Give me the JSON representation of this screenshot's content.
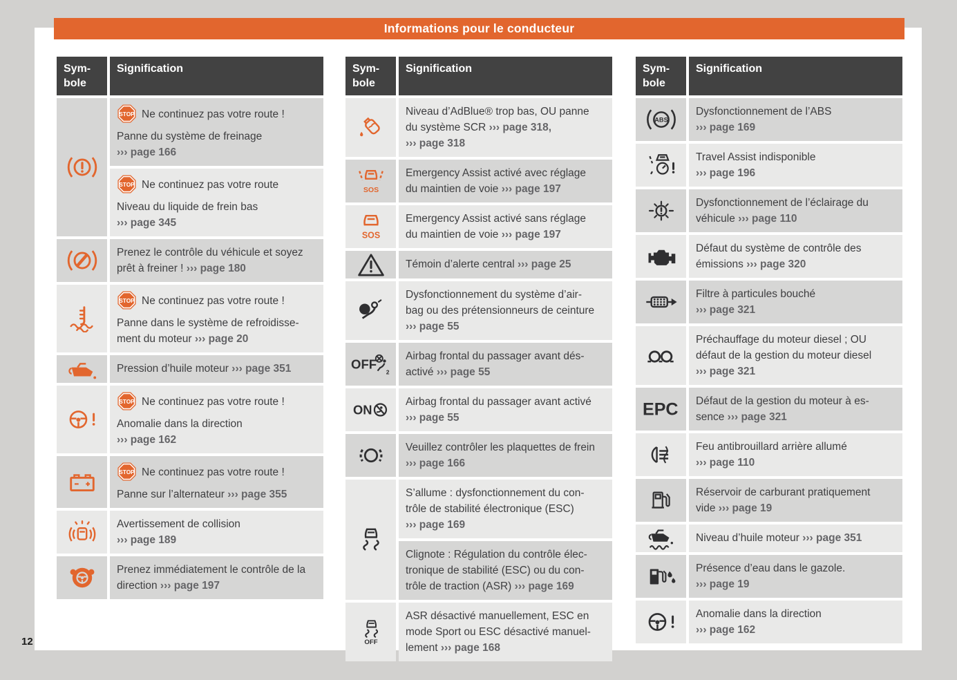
{
  "header": {
    "title": "Informations pour le conducteur"
  },
  "page_number": "12",
  "table_header": {
    "symbol_label": "Sym-\nbole",
    "signification_label": "Signification"
  },
  "stop_badge_label": "STOP",
  "colors": {
    "accent_orange": "#e2662e",
    "header_dark": "#424242",
    "row_dark": "#d6d6d5",
    "row_light": "#e9e9e8",
    "text": "#3e3e40",
    "page_ref": "#656568"
  },
  "icon_colors": {
    "orange": "#e2662e",
    "black": "#2f2f31"
  },
  "columns": [
    {
      "rows": [
        {
          "icon": "brake-warning-icon",
          "color": "orange",
          "cells": [
            {
              "stop": true,
              "shade": "dark",
              "text": "Ne continuez pas votre route !\nPanne du système de freinage\n››› page 166"
            },
            {
              "stop": true,
              "shade": "light",
              "text": "Ne continuez pas votre route\nNiveau du liquide de frein bas\n››› page 345"
            }
          ]
        },
        {
          "icon": "brake-takeover-icon",
          "color": "orange",
          "cells": [
            {
              "shade": "dark",
              "text": "Prenez le contrôle du véhicule et soyez\nprêt à freiner ! ››› page 180"
            }
          ]
        },
        {
          "icon": "coolant-temperature-icon",
          "color": "orange",
          "cells": [
            {
              "stop": true,
              "shade": "light",
              "text": "Ne continuez pas votre route !\nPanne dans le système de refroidisse-\nment du moteur ››› page 20"
            }
          ]
        },
        {
          "icon": "oil-pressure-icon",
          "color": "orange",
          "cells": [
            {
              "shade": "dark",
              "text": "Pression d’huile moteur ››› page 351"
            }
          ]
        },
        {
          "icon": "steering-warning-icon",
          "color": "orange",
          "cells": [
            {
              "stop": true,
              "shade": "light",
              "text": "Ne continuez pas votre route !\nAnomalie dans la direction\n››› page 162"
            }
          ]
        },
        {
          "icon": "battery-icon",
          "color": "orange",
          "cells": [
            {
              "stop": true,
              "shade": "dark",
              "text": "Ne continuez pas votre route !\nPanne sur l’alternateur ››› page 355"
            }
          ]
        },
        {
          "icon": "collision-warning-icon",
          "color": "orange",
          "cells": [
            {
              "shade": "light",
              "text": "Avertissement de collision\n››› page 189"
            }
          ]
        },
        {
          "icon": "steering-takeover-icon",
          "color": "orange",
          "cells": [
            {
              "shade": "dark",
              "text": "Prenez immédiatement le contrôle de la\ndirection ››› page 197"
            }
          ]
        }
      ]
    },
    {
      "rows": [
        {
          "icon": "adblue-icon",
          "color": "orange",
          "cells": [
            {
              "shade": "light",
              "text": "Niveau d’AdBlue® trop bas, OU panne\ndu système SCR ››› page 318,\n››› page 318"
            }
          ]
        },
        {
          "icon": "emergency-assist-lane-icon",
          "color": "orange",
          "cells": [
            {
              "shade": "dark",
              "text": "Emergency Assist activé avec réglage\ndu maintien de voie ››› page 197"
            }
          ]
        },
        {
          "icon": "emergency-assist-icon",
          "color": "orange",
          "cells": [
            {
              "shade": "light",
              "text": "Emergency Assist activé sans réglage\ndu maintien de voie ››› page 197"
            }
          ]
        },
        {
          "icon": "central-warning-icon",
          "color": "black",
          "cells": [
            {
              "shade": "dark",
              "text": "Témoin d’alerte central ››› page 25"
            }
          ]
        },
        {
          "icon": "airbag-icon",
          "color": "black",
          "cells": [
            {
              "shade": "light",
              "text": "Dysfonctionnement du système d’air-\nbag ou des prétensionneurs de ceinture\n››› page 55"
            }
          ]
        },
        {
          "icon": "airbag-off-icon",
          "color": "black",
          "cells": [
            {
              "shade": "dark",
              "text": "Airbag frontal du passager avant dés-\nactivé ››› page 55"
            }
          ]
        },
        {
          "icon": "airbag-on-icon",
          "color": "black",
          "cells": [
            {
              "shade": "light",
              "text": "Airbag frontal du passager avant activé\n››› page 55"
            }
          ]
        },
        {
          "icon": "brake-pads-icon",
          "color": "black",
          "cells": [
            {
              "shade": "dark",
              "text": "Veuillez contrôler les plaquettes de frein\n››› page 166"
            }
          ]
        },
        {
          "icon": "esc-icon",
          "color": "black",
          "cells": [
            {
              "shade": "light",
              "text": "S’allume : dysfonctionnement du con-\ntrôle de stabilité électronique (ESC)\n››› page 169"
            },
            {
              "shade": "dark",
              "text": "Clignote : Régulation du contrôle élec-\ntronique de stabilité (ESC) ou du con-\ntrôle de traction (ASR) ››› page 169"
            }
          ]
        },
        {
          "icon": "esc-off-icon",
          "color": "black",
          "cells": [
            {
              "shade": "light",
              "text": "ASR désactivé manuellement, ESC en\nmode Sport ou ESC désactivé manuel-\nlement ››› page 168"
            }
          ]
        }
      ]
    },
    {
      "rows": [
        {
          "icon": "abs-icon",
          "color": "black",
          "cells": [
            {
              "shade": "dark",
              "text": "Dysfonctionnement de l’ABS\n››› page 169"
            }
          ]
        },
        {
          "icon": "travel-assist-icon",
          "color": "black",
          "cells": [
            {
              "shade": "light",
              "text": "Travel Assist indisponible\n››› page 196"
            }
          ]
        },
        {
          "icon": "light-malfunction-icon",
          "color": "black",
          "cells": [
            {
              "shade": "dark",
              "text": "Dysfonctionnement de l’éclairage du\nvéhicule ››› page 110"
            }
          ]
        },
        {
          "icon": "check-engine-icon",
          "color": "black",
          "cells": [
            {
              "shade": "light",
              "text": "Défaut du système de contrôle des\némissions ››› page 320"
            }
          ]
        },
        {
          "icon": "particulate-filter-icon",
          "color": "black",
          "cells": [
            {
              "shade": "dark",
              "text": "Filtre à particules bouché\n››› page 321"
            }
          ]
        },
        {
          "icon": "glow-plug-icon",
          "color": "black",
          "cells": [
            {
              "shade": "light",
              "text": "Préchauffage du moteur diesel ; OU\ndéfaut de la gestion du moteur diesel\n››› page 321"
            }
          ]
        },
        {
          "icon": "epc-icon",
          "color": "black",
          "cells": [
            {
              "shade": "dark",
              "text": "Défaut de la gestion du moteur à es-\nsence ››› page 321"
            }
          ]
        },
        {
          "icon": "rear-fog-icon",
          "color": "black",
          "cells": [
            {
              "shade": "light",
              "text": "Feu antibrouillard arrière allumé\n››› page 110"
            }
          ]
        },
        {
          "icon": "fuel-icon",
          "color": "black",
          "cells": [
            {
              "shade": "dark",
              "text": "Réservoir de carburant pratiquement\nvide ››› page 19"
            }
          ]
        },
        {
          "icon": "oil-level-icon",
          "color": "black",
          "cells": [
            {
              "shade": "light",
              "text": "Niveau d’huile moteur ››› page 351"
            }
          ]
        },
        {
          "icon": "water-in-fuel-icon",
          "color": "black",
          "cells": [
            {
              "shade": "dark",
              "text": "Présence d’eau dans le gazole.\n››› page 19"
            }
          ]
        },
        {
          "icon": "steering-warning-icon",
          "color": "black",
          "cells": [
            {
              "shade": "light",
              "text": "Anomalie dans la direction\n››› page 162"
            }
          ]
        }
      ]
    }
  ]
}
